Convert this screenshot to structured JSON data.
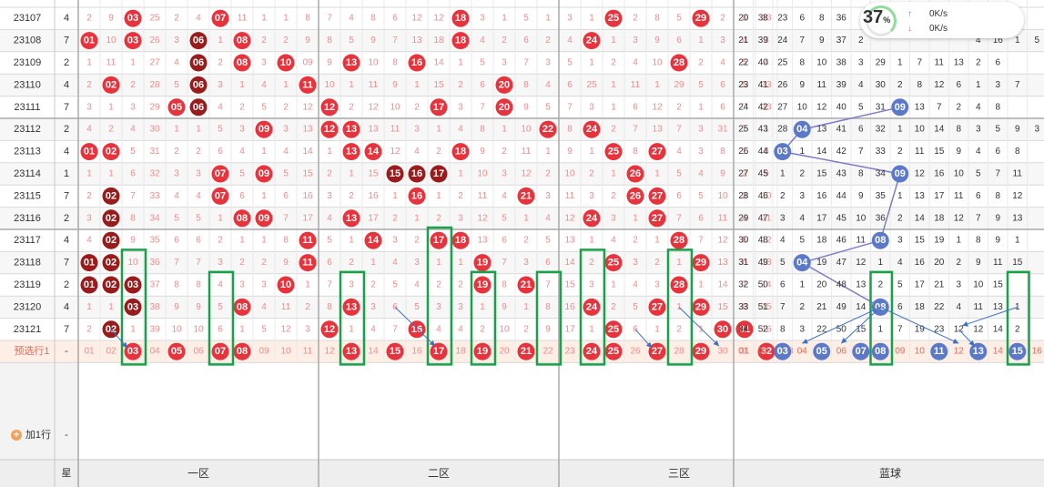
{
  "chart_data": {
    "type": "table",
    "issues": [
      "23107",
      "23108",
      "23109",
      "23110",
      "23111",
      "23112",
      "23113",
      "23114",
      "23115",
      "23116",
      "23117",
      "23118",
      "23119",
      "23120",
      "23121"
    ],
    "stars": [
      4,
      7,
      2,
      4,
      7,
      2,
      4,
      1,
      7,
      2,
      4,
      7,
      2,
      4,
      7
    ],
    "red_cells": [
      [
        "2",
        "9",
        "03",
        "25",
        "2",
        "4",
        "07",
        "11",
        "1",
        "1",
        "8",
        "7",
        "4",
        "8",
        "6",
        "12",
        "12",
        "18",
        "3",
        "1",
        "5",
        "1",
        "3",
        "1",
        "25",
        "2",
        "8",
        "5",
        "29",
        "2",
        "3",
        "33"
      ],
      [
        "01",
        "10",
        "03",
        "26",
        "3",
        "06",
        "1",
        "08",
        "2",
        "2",
        "9",
        "8",
        "5",
        "9",
        "7",
        "13",
        "18",
        "18",
        "4",
        "2",
        "6",
        "2",
        "4",
        "24",
        "1",
        "3",
        "9",
        "6",
        "1",
        "3",
        "4",
        "3"
      ],
      [
        "1",
        "11",
        "1",
        "27",
        "4",
        "06",
        "2",
        "08",
        "3",
        "10",
        "09",
        "9",
        "13",
        "10",
        "8",
        "16",
        "14",
        "1",
        "5",
        "3",
        "7",
        "3",
        "5",
        "1",
        "2",
        "4",
        "10",
        "28",
        "2",
        "4",
        "5",
        "4"
      ],
      [
        "2",
        "02",
        "2",
        "28",
        "5",
        "06",
        "3",
        "1",
        "4",
        "1",
        "11",
        "10",
        "1",
        "11",
        "9",
        "1",
        "15",
        "2",
        "6",
        "20",
        "8",
        "4",
        "6",
        "25",
        "1",
        "11",
        "1",
        "29",
        "5",
        "6",
        "5",
        "33"
      ],
      [
        "3",
        "1",
        "3",
        "29",
        "05",
        "06",
        "4",
        "2",
        "5",
        "2",
        "12",
        "12",
        "2",
        "12",
        "10",
        "2",
        "17",
        "3",
        "7",
        "20",
        "9",
        "5",
        "7",
        "3",
        "1",
        "6",
        "12",
        "2",
        "1",
        "6",
        "7",
        "33"
      ],
      [
        "4",
        "2",
        "4",
        "30",
        "1",
        "1",
        "5",
        "3",
        "09",
        "3",
        "13",
        "12",
        "13",
        "13",
        "11",
        "3",
        "1",
        "4",
        "8",
        "1",
        "10",
        "22",
        "8",
        "24",
        "2",
        "7",
        "13",
        "7",
        "3",
        "31",
        "7",
        "1"
      ],
      [
        "01",
        "02",
        "5",
        "31",
        "2",
        "2",
        "6",
        "4",
        "1",
        "4",
        "14",
        "1",
        "13",
        "14",
        "12",
        "4",
        "2",
        "18",
        "9",
        "2",
        "11",
        "1",
        "9",
        "1",
        "25",
        "8",
        "27",
        "4",
        "3",
        "8",
        "1",
        "8"
      ],
      [
        "1",
        "1",
        "6",
        "32",
        "3",
        "3",
        "07",
        "5",
        "09",
        "5",
        "15",
        "2",
        "1",
        "15",
        "15",
        "16",
        "17",
        "1",
        "10",
        "3",
        "12",
        "2",
        "10",
        "2",
        "1",
        "26",
        "1",
        "5",
        "4",
        "9",
        "2",
        "9"
      ],
      [
        "2",
        "02",
        "7",
        "33",
        "4",
        "4",
        "07",
        "6",
        "1",
        "6",
        "16",
        "3",
        "2",
        "16",
        "1",
        "16",
        "1",
        "2",
        "11",
        "4",
        "21",
        "3",
        "11",
        "3",
        "2",
        "26",
        "27",
        "6",
        "5",
        "10",
        "3",
        "10"
      ],
      [
        "3",
        "02",
        "8",
        "34",
        "5",
        "5",
        "1",
        "08",
        "09",
        "7",
        "17",
        "4",
        "13",
        "17",
        "2",
        "1",
        "2",
        "3",
        "12",
        "5",
        "1",
        "4",
        "12",
        "24",
        "3",
        "1",
        "27",
        "7",
        "6",
        "11",
        "4",
        "11"
      ],
      [
        "4",
        "02",
        "9",
        "35",
        "6",
        "6",
        "2",
        "1",
        "1",
        "8",
        "11",
        "5",
        "1",
        "14",
        "3",
        "2",
        "17",
        "18",
        "13",
        "6",
        "2",
        "5",
        "13",
        "1",
        "4",
        "2",
        "1",
        "28",
        "7",
        "12",
        "5",
        "12"
      ],
      [
        "01",
        "02",
        "10",
        "36",
        "7",
        "7",
        "3",
        "2",
        "2",
        "9",
        "11",
        "6",
        "2",
        "1",
        "4",
        "3",
        "1",
        "1",
        "19",
        "7",
        "3",
        "6",
        "14",
        "2",
        "25",
        "3",
        "2",
        "1",
        "29",
        "13",
        "6",
        "13"
      ],
      [
        "01",
        "02",
        "03",
        "37",
        "8",
        "8",
        "4",
        "3",
        "3",
        "10",
        "1",
        "7",
        "3",
        "2",
        "5",
        "4",
        "2",
        "2",
        "19",
        "8",
        "21",
        "7",
        "15",
        "3",
        "1",
        "4",
        "3",
        "28",
        "1",
        "14",
        "7",
        "14"
      ],
      [
        "1",
        "1",
        "03",
        "38",
        "9",
        "9",
        "5",
        "08",
        "4",
        "11",
        "2",
        "8",
        "13",
        "3",
        "6",
        "5",
        "3",
        "3",
        "1",
        "9",
        "1",
        "8",
        "16",
        "24",
        "2",
        "5",
        "27",
        "1",
        "29",
        "15",
        "8",
        "15"
      ],
      [
        "2",
        "02",
        "1",
        "39",
        "10",
        "10",
        "6",
        "1",
        "5",
        "12",
        "3",
        "12",
        "1",
        "4",
        "7",
        "16",
        "4",
        "4",
        "2",
        "10",
        "2",
        "9",
        "17",
        "1",
        "25",
        "6",
        "1",
        "2",
        "1",
        "30",
        "31",
        "16"
      ]
    ],
    "blue_cells": [
      [
        "20",
        "38",
        "23",
        "6",
        "8",
        "36",
        "",
        "",
        "",
        "",
        "",
        "",
        "",
        "14",
        "",
        ""
      ],
      [
        "21",
        "39",
        "24",
        "7",
        "9",
        "37",
        "2",
        "",
        "",
        "",
        "",
        "",
        "4",
        "16",
        "1",
        "5"
      ],
      [
        "22",
        "40",
        "25",
        "8",
        "10",
        "38",
        "3",
        "29",
        "1",
        "7",
        "11",
        "13",
        "2",
        "6",
        "",
        ""
      ],
      [
        "23",
        "41",
        "26",
        "9",
        "11",
        "39",
        "4",
        "30",
        "2",
        "8",
        "12",
        "6",
        "1",
        "3",
        "7",
        ""
      ],
      [
        "24",
        "42",
        "27",
        "10",
        "12",
        "40",
        "5",
        "31",
        "09",
        "13",
        "7",
        "2",
        "4",
        "8",
        "",
        ""
      ],
      [
        "25",
        "43",
        "28",
        "04",
        "13",
        "41",
        "6",
        "32",
        "1",
        "10",
        "14",
        "8",
        "3",
        "5",
        "9",
        "3"
      ],
      [
        "26",
        "44",
        "03",
        "1",
        "14",
        "42",
        "7",
        "33",
        "2",
        "11",
        "15",
        "9",
        "4",
        "6",
        "8",
        ""
      ],
      [
        "27",
        "45",
        "1",
        "2",
        "15",
        "43",
        "8",
        "34",
        "09",
        "12",
        "16",
        "10",
        "5",
        "7",
        "11",
        ""
      ],
      [
        "28",
        "46",
        "2",
        "3",
        "16",
        "44",
        "9",
        "35",
        "1",
        "13",
        "17",
        "11",
        "6",
        "8",
        "12",
        ""
      ],
      [
        "29",
        "47",
        "3",
        "4",
        "17",
        "45",
        "10",
        "36",
        "2",
        "14",
        "18",
        "12",
        "7",
        "9",
        "13",
        ""
      ],
      [
        "30",
        "48",
        "4",
        "5",
        "18",
        "46",
        "11",
        "08",
        "3",
        "15",
        "19",
        "1",
        "8",
        "9",
        "1",
        ""
      ],
      [
        "31",
        "49",
        "5",
        "04",
        "19",
        "47",
        "12",
        "1",
        "4",
        "16",
        "20",
        "2",
        "9",
        "11",
        "15",
        ""
      ],
      [
        "32",
        "50",
        "6",
        "1",
        "20",
        "48",
        "13",
        "2",
        "5",
        "17",
        "21",
        "3",
        "10",
        "15",
        "",
        ""
      ],
      [
        "33",
        "51",
        "7",
        "2",
        "21",
        "49",
        "14",
        "08",
        "6",
        "18",
        "22",
        "4",
        "11",
        "13",
        "1",
        ""
      ],
      [
        "34",
        "52",
        "8",
        "3",
        "22",
        "50",
        "15",
        "1",
        "7",
        "19",
        "23",
        "12",
        "12",
        "14",
        "2",
        ""
      ]
    ],
    "preselect_label": "预选行1",
    "preselect_dash": "-",
    "preselect_red": [
      "01",
      "02",
      "03",
      "04",
      "05",
      "06",
      "07",
      "08",
      "09",
      "10",
      "11",
      "12",
      "13",
      "14",
      "15",
      "16",
      "17",
      "18",
      "19",
      "20",
      "21",
      "22",
      "23",
      "24",
      "25",
      "26",
      "27",
      "28",
      "29",
      "30",
      "31",
      "32",
      "33"
    ],
    "preselect_red_selected": [
      "03",
      "05",
      "07",
      "08",
      "13",
      "15",
      "17",
      "19",
      "21",
      "24",
      "25",
      "27",
      "29",
      "32"
    ],
    "preselect_blue": [
      "01",
      "02",
      "03",
      "04",
      "05",
      "06",
      "07",
      "08",
      "09",
      "10",
      "11",
      "12",
      "13",
      "14",
      "15",
      "16"
    ],
    "preselect_blue_selected": [
      "03",
      "05",
      "07",
      "08",
      "11",
      "13",
      "15"
    ],
    "add_row_label": "加1行",
    "add_row_dash": "-",
    "footer": {
      "star": "星",
      "zone1": "一区",
      "zone2": "二区",
      "zone3": "三区",
      "blue": "蓝球"
    },
    "colors": {
      "red_ball": "#e8323c",
      "dark_red_ball": "#9a1b1b",
      "blue_ball": "#5b79c8",
      "green_box": "#17a24a",
      "arrow": "#3a6fc4",
      "line": "#7b7ec7",
      "pre_bg": "#fdeee6"
    }
  },
  "speed_widget": {
    "percent": "37",
    "unit": "%",
    "upload": "0K/s",
    "download": "0K/s",
    "up_arrow": "↑",
    "down_arrow": "↓"
  }
}
